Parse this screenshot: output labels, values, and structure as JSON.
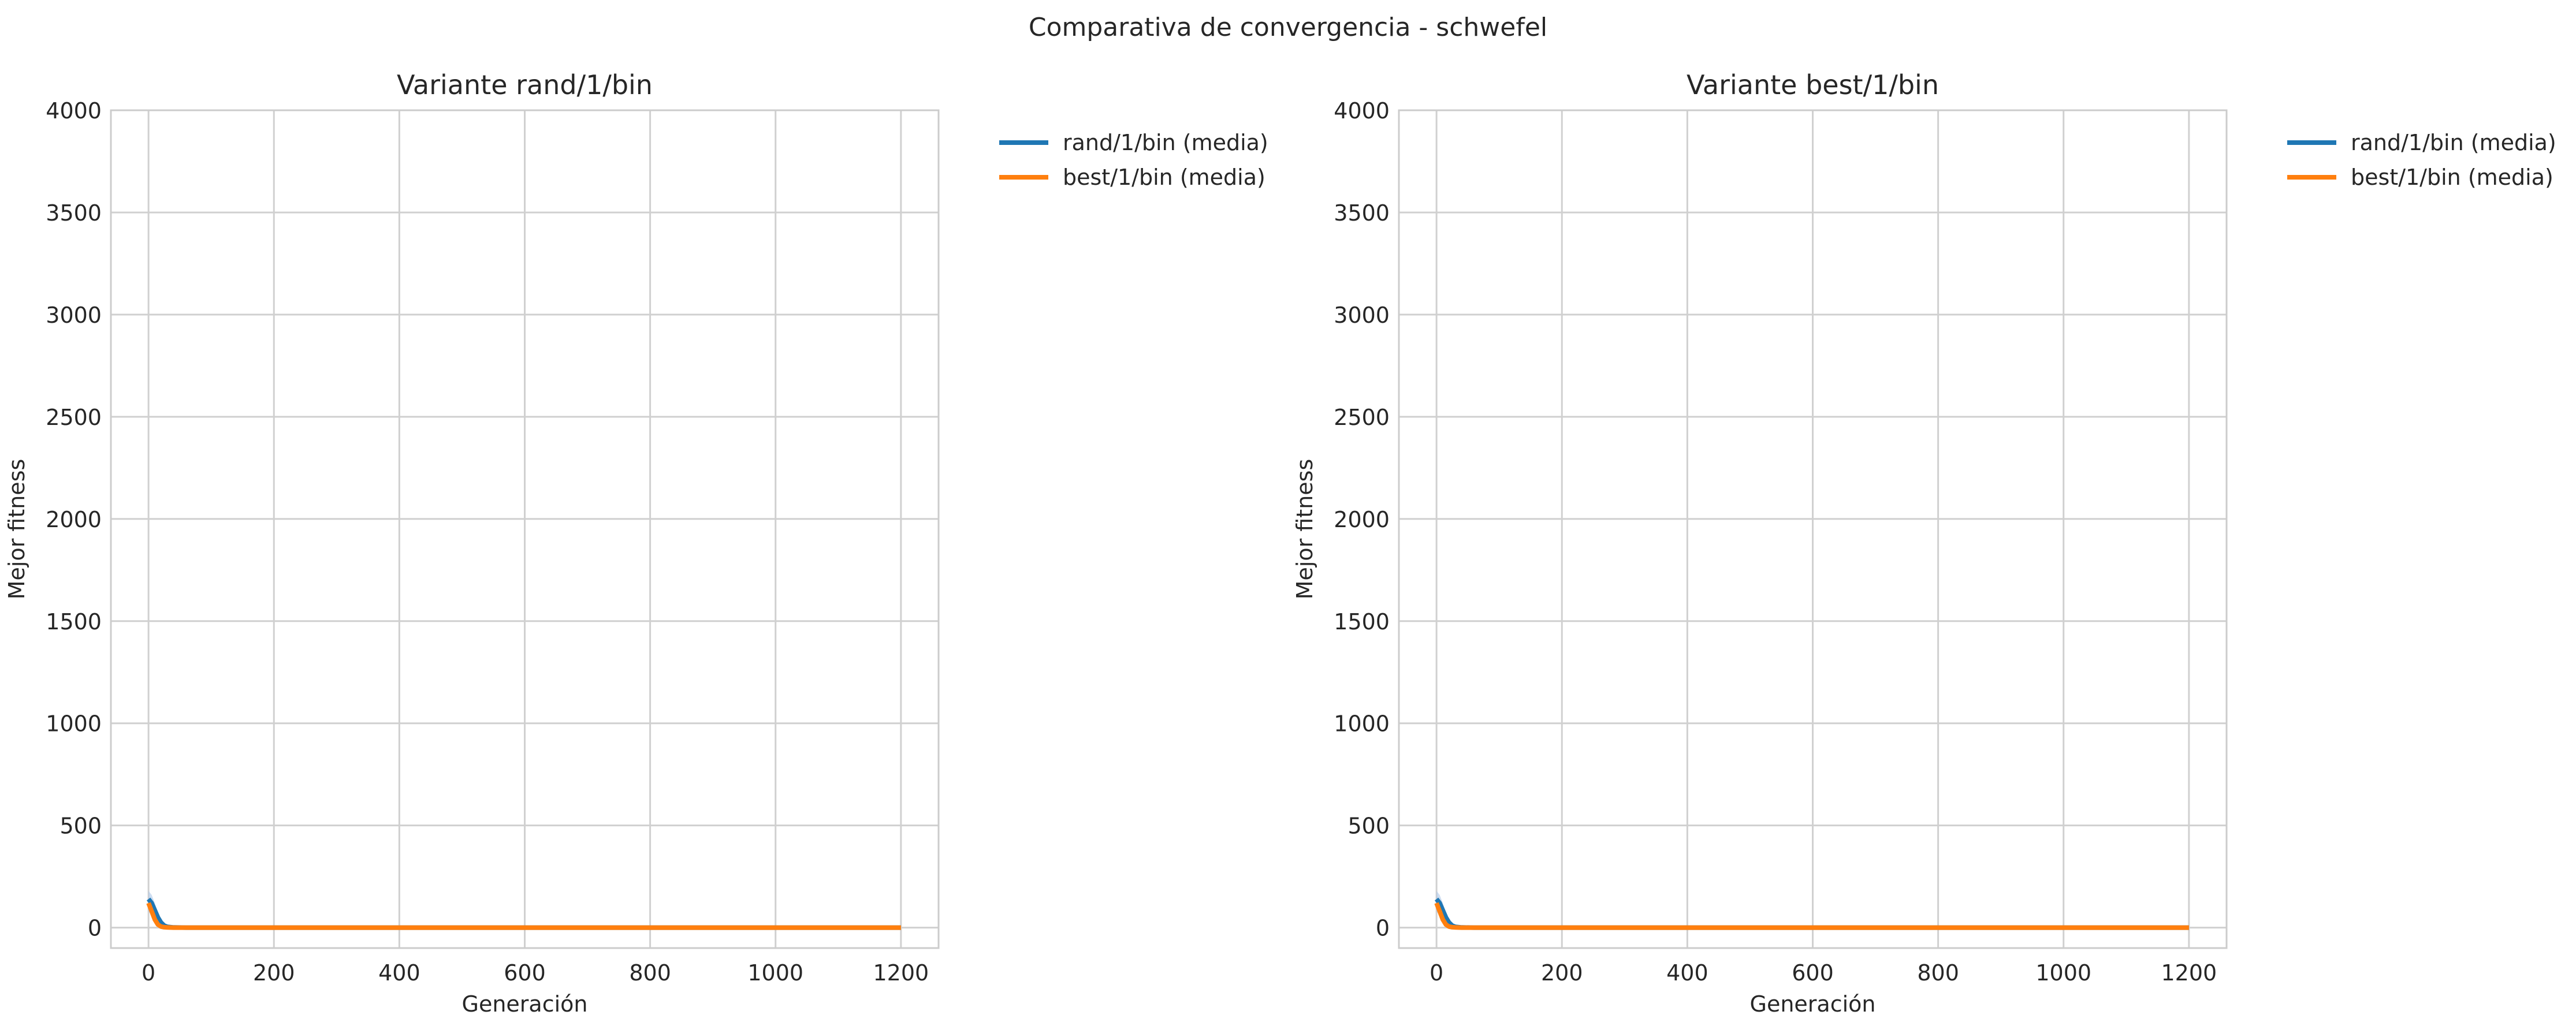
{
  "suptitle": "Comparativa de convergencia - schwefel",
  "colors": {
    "rand": "#1f77b4",
    "best": "#ff7f0e",
    "band": "#aec7e8",
    "grid": "#d0d0d0",
    "spine": "#cccccc",
    "text": "#262626"
  },
  "chart_data": [
    {
      "type": "line",
      "title": "Variante rand/1/bin",
      "xlabel": "Generación",
      "ylabel": "Mejor fitness",
      "xlim": [
        -60,
        1260
      ],
      "ylim": [
        -100,
        4000
      ],
      "xticks": [
        0,
        200,
        400,
        600,
        800,
        1000,
        1200
      ],
      "yticks": [
        0,
        500,
        1000,
        1500,
        2000,
        2500,
        3000,
        3500,
        4000
      ],
      "grid": true,
      "legend_position": "outside upper right",
      "series": [
        {
          "name": "rand/1/bin (media)",
          "color": "#1f77b4",
          "x": [
            0,
            5,
            10,
            15,
            20,
            25,
            30,
            40,
            60,
            100,
            200,
            400,
            600,
            800,
            1000,
            1200
          ],
          "y": [
            140,
            120,
            85,
            50,
            25,
            10,
            4,
            1,
            0,
            0,
            0,
            0,
            0,
            0,
            0,
            0
          ]
        },
        {
          "name": "best/1/bin (media)",
          "color": "#ff7f0e",
          "x": [
            0,
            5,
            10,
            15,
            20,
            25,
            30,
            40,
            60,
            100,
            200,
            400,
            600,
            800,
            1000,
            1200
          ],
          "y": [
            120,
            80,
            40,
            15,
            5,
            2,
            1,
            0,
            0,
            0,
            0,
            0,
            0,
            0,
            0,
            0
          ]
        }
      ],
      "band": {
        "x": [
          0,
          5,
          10,
          15,
          20,
          25,
          30,
          40
        ],
        "upper": [
          180,
          160,
          120,
          75,
          40,
          18,
          8,
          2
        ],
        "lower": [
          80,
          60,
          35,
          15,
          5,
          1,
          0,
          0
        ]
      }
    },
    {
      "type": "line",
      "title": "Variante best/1/bin",
      "xlabel": "Generación",
      "ylabel": "Mejor fitness",
      "xlim": [
        -60,
        1260
      ],
      "ylim": [
        -100,
        4000
      ],
      "xticks": [
        0,
        200,
        400,
        600,
        800,
        1000,
        1200
      ],
      "yticks": [
        0,
        500,
        1000,
        1500,
        2000,
        2500,
        3000,
        3500,
        4000
      ],
      "grid": true,
      "legend_position": "outside upper right",
      "series": [
        {
          "name": "rand/1/bin (media)",
          "color": "#1f77b4",
          "x": [
            0,
            5,
            10,
            15,
            20,
            25,
            30,
            40,
            60,
            100,
            200,
            400,
            600,
            800,
            1000,
            1200
          ],
          "y": [
            140,
            120,
            85,
            50,
            25,
            10,
            4,
            1,
            0,
            0,
            0,
            0,
            0,
            0,
            0,
            0
          ]
        },
        {
          "name": "best/1/bin (media)",
          "color": "#ff7f0e",
          "x": [
            0,
            5,
            10,
            15,
            20,
            25,
            30,
            40,
            60,
            100,
            200,
            400,
            600,
            800,
            1000,
            1200
          ],
          "y": [
            120,
            80,
            40,
            15,
            5,
            2,
            1,
            0,
            0,
            0,
            0,
            0,
            0,
            0,
            0,
            0
          ]
        }
      ],
      "band": {
        "x": [
          0,
          5,
          10,
          15,
          20,
          25,
          30,
          40
        ],
        "upper": [
          180,
          160,
          120,
          75,
          40,
          18,
          8,
          2
        ],
        "lower": [
          80,
          60,
          35,
          15,
          5,
          1,
          0,
          0
        ]
      }
    }
  ]
}
